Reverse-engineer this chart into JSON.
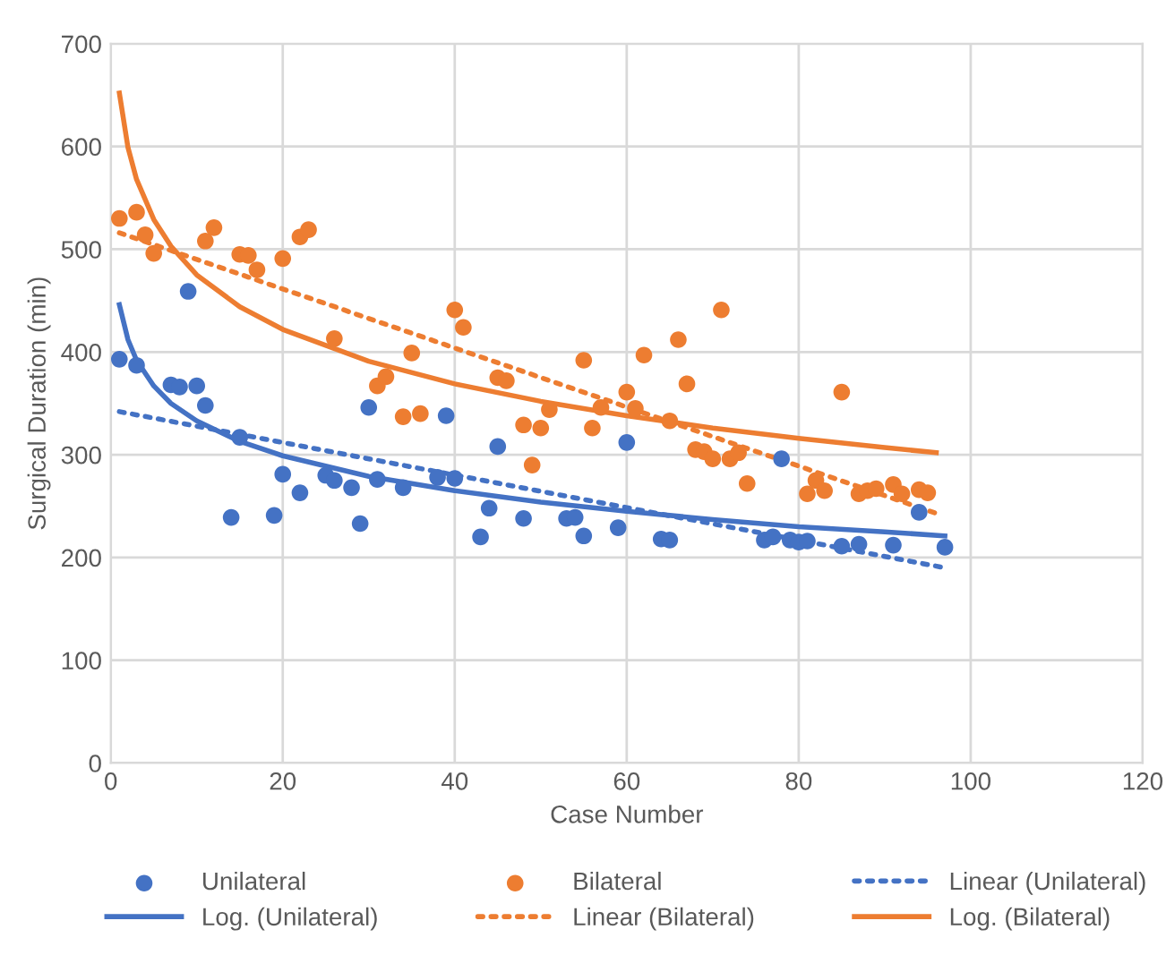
{
  "chart_data": {
    "type": "scatter",
    "xlabel": "Case Number",
    "ylabel": "Surgical Duration (min)",
    "xlim": [
      0,
      120
    ],
    "xticks": [
      0,
      20,
      40,
      60,
      80,
      100,
      120
    ],
    "ylim": [
      0,
      700
    ],
    "yticks": [
      0,
      100,
      200,
      300,
      400,
      500,
      600,
      700
    ],
    "grid": true,
    "legend": "bottom",
    "series": [
      {
        "name": "Unilateral",
        "marker": "circle",
        "color": "#4472c4",
        "x": [
          1,
          3,
          7,
          8,
          9,
          10,
          11,
          14,
          15,
          19,
          20,
          22,
          25,
          26,
          28,
          29,
          30,
          31,
          34,
          38,
          39,
          40,
          43,
          44,
          45,
          48,
          53,
          54,
          55,
          59,
          60,
          64,
          65,
          76,
          77,
          78,
          79,
          80,
          81,
          85,
          87,
          91,
          94,
          97
        ],
        "values": [
          393,
          387,
          368,
          366,
          459,
          367,
          348,
          239,
          317,
          241,
          281,
          263,
          280,
          275,
          268,
          233,
          346,
          276,
          268,
          278,
          338,
          277,
          220,
          248,
          308,
          238,
          238,
          239,
          221,
          229,
          312,
          218,
          217,
          217,
          220,
          296,
          217,
          215,
          216,
          211,
          213,
          212,
          244,
          210
        ]
      },
      {
        "name": "Bilateral",
        "marker": "circle",
        "color": "#ed7d31",
        "x": [
          1,
          3,
          4,
          5,
          11,
          12,
          15,
          16,
          17,
          20,
          22,
          23,
          26,
          31,
          32,
          34,
          35,
          36,
          40,
          41,
          45,
          46,
          48,
          49,
          50,
          51,
          55,
          56,
          57,
          60,
          61,
          62,
          65,
          66,
          67,
          68,
          69,
          70,
          71,
          72,
          73,
          74,
          81,
          82,
          83,
          85,
          87,
          88,
          89,
          91,
          92,
          94,
          95
        ],
        "values": [
          530,
          536,
          514,
          496,
          508,
          521,
          495,
          494,
          480,
          491,
          512,
          519,
          413,
          367,
          376,
          337,
          399,
          340,
          441,
          424,
          375,
          372,
          329,
          290,
          326,
          344,
          392,
          326,
          346,
          361,
          345,
          397,
          333,
          412,
          369,
          305,
          303,
          296,
          441,
          296,
          302,
          272,
          262,
          275,
          265,
          361,
          262,
          265,
          267,
          271,
          262,
          266,
          263
        ]
      },
      {
        "name": "Linear (Unilateral)",
        "type": "line",
        "line_style": "dotted",
        "color": "#4472c4",
        "x": [
          1,
          97
        ],
        "values": [
          342,
          190
        ]
      },
      {
        "name": "Log. (Unilateral)",
        "type": "line",
        "line_style": "solid",
        "color": "#4472c4",
        "x": [
          1,
          2,
          3,
          5,
          7,
          10,
          15,
          20,
          30,
          40,
          50,
          60,
          70,
          80,
          90,
          97
        ],
        "values": [
          446,
          412,
          392,
          367,
          350,
          333,
          313,
          299,
          279,
          265,
          254,
          245,
          237,
          230,
          225,
          221
        ]
      },
      {
        "name": "Linear (Bilateral)",
        "type": "line",
        "line_style": "dotted",
        "color": "#ed7d31",
        "x": [
          1,
          96
        ],
        "values": [
          516,
          243
        ]
      },
      {
        "name": "Log. (Bilateral)",
        "type": "line",
        "line_style": "solid",
        "color": "#ed7d31",
        "x": [
          1,
          2,
          3,
          5,
          7,
          10,
          15,
          20,
          30,
          40,
          50,
          60,
          70,
          80,
          90,
          96
        ],
        "values": [
          652,
          599,
          568,
          529,
          503,
          475,
          444,
          422,
          391,
          369,
          352,
          338,
          326,
          316,
          307,
          302
        ]
      }
    ]
  }
}
